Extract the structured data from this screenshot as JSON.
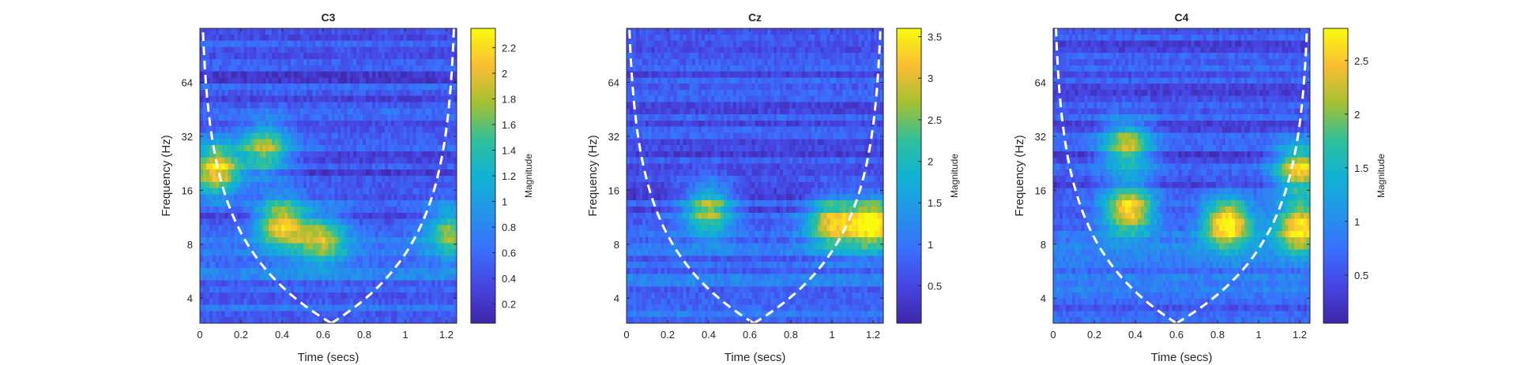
{
  "chart_data": [
    {
      "type": "heatmap",
      "title": "C3",
      "xlabel": "Time (secs)",
      "ylabel": "Frequency (Hz)",
      "xlim": [
        0,
        1.25
      ],
      "ylim_hz": [
        2.9,
        128
      ],
      "yscale": "log2",
      "x_ticks": [
        "0",
        "0.2",
        "0.4",
        "0.6",
        "0.8",
        "1",
        "1.2"
      ],
      "y_ticks": [
        "4",
        "8",
        "16",
        "32",
        "64"
      ],
      "colorbar": {
        "label": "Magnitude",
        "range": [
          0.05,
          2.35
        ],
        "ticks": [
          "0.2",
          "0.4",
          "0.6",
          "0.8",
          "1",
          "1.2",
          "1.4",
          "1.6",
          "1.8",
          "2",
          "2.2"
        ]
      },
      "cone_of_influence": {
        "min_time": 0.64,
        "min_freq_hz": 2.9
      },
      "hotspots": [
        {
          "time": 0.08,
          "freq_hz": 21,
          "magnitude": 2.2
        },
        {
          "time": 0.32,
          "freq_hz": 27,
          "magnitude": 1.6
        },
        {
          "time": 0.4,
          "freq_hz": 10.5,
          "magnitude": 2.0
        },
        {
          "time": 0.6,
          "freq_hz": 8.5,
          "magnitude": 1.5
        },
        {
          "time": 1.22,
          "freq_hz": 9.5,
          "magnitude": 1.4
        }
      ]
    },
    {
      "type": "heatmap",
      "title": "Cz",
      "xlabel": "Time (secs)",
      "ylabel": "Frequency (Hz)",
      "xlim": [
        0,
        1.25
      ],
      "ylim_hz": [
        2.9,
        128
      ],
      "yscale": "log2",
      "x_ticks": [
        "0",
        "0.2",
        "0.4",
        "0.6",
        "0.8",
        "1",
        "1.2"
      ],
      "y_ticks": [
        "4",
        "8",
        "16",
        "32",
        "64"
      ],
      "colorbar": {
        "label": "Magnitude",
        "range": [
          0.05,
          3.6
        ],
        "ticks": [
          "0.5",
          "1",
          "1.5",
          "2",
          "2.5",
          "3",
          "3.5"
        ]
      },
      "cone_of_influence": {
        "min_time": 0.62,
        "min_freq_hz": 2.9
      },
      "hotspots": [
        {
          "time": 0.4,
          "freq_hz": 12.5,
          "magnitude": 2.5
        },
        {
          "time": 1.0,
          "freq_hz": 10.5,
          "magnitude": 2.8
        },
        {
          "time": 1.2,
          "freq_hz": 10.5,
          "magnitude": 3.5
        }
      ]
    },
    {
      "type": "heatmap",
      "title": "C4",
      "xlabel": "Time (secs)",
      "ylabel": "Frequency (Hz)",
      "xlim": [
        0,
        1.25
      ],
      "ylim_hz": [
        2.9,
        128
      ],
      "yscale": "log2",
      "x_ticks": [
        "0",
        "0.2",
        "0.4",
        "0.6",
        "0.8",
        "1",
        "1.2"
      ],
      "y_ticks": [
        "4",
        "8",
        "16",
        "32",
        "64"
      ],
      "colorbar": {
        "label": "Magnitude",
        "range": [
          0.05,
          2.8
        ],
        "ticks": [
          "0.5",
          "1",
          "1.5",
          "2",
          "2.5"
        ]
      },
      "cone_of_influence": {
        "min_time": 0.6,
        "min_freq_hz": 2.9
      },
      "hotspots": [
        {
          "time": 0.37,
          "freq_hz": 12.5,
          "magnitude": 2.5
        },
        {
          "time": 0.36,
          "freq_hz": 28,
          "magnitude": 2.0
        },
        {
          "time": 0.85,
          "freq_hz": 10.5,
          "magnitude": 2.7
        },
        {
          "time": 1.2,
          "freq_hz": 10,
          "magnitude": 2.5
        },
        {
          "time": 1.2,
          "freq_hz": 21,
          "magnitude": 2.4
        }
      ]
    }
  ]
}
